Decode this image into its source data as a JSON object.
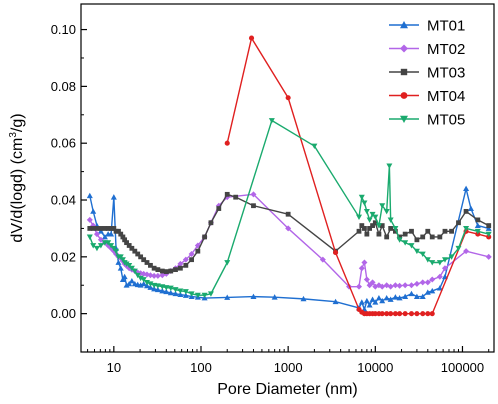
{
  "chart_data": {
    "type": "line",
    "xlabel": "Pore Diameter (nm)",
    "ylabel_parts": [
      "dV/d(logd) (cm",
      "3",
      "/g)"
    ],
    "x_scale": "log",
    "xlim": [
      4.2,
      230000
    ],
    "ylim": [
      -0.0135,
      0.109
    ],
    "x_ticks": [
      10,
      100,
      1000,
      10000,
      100000
    ],
    "x_tick_labels": [
      "10",
      "100",
      "1000",
      "10000",
      "100000"
    ],
    "y_ticks": [
      0.0,
      0.02,
      0.04,
      0.06,
      0.08,
      0.1
    ],
    "y_tick_labels": [
      "0.00",
      "0.02",
      "0.04",
      "0.06",
      "0.08",
      "0.10"
    ],
    "grid": false,
    "legend_position": "top-right",
    "series": [
      {
        "name": "MT01",
        "color": "#1f6fd1",
        "marker": "triangle-up",
        "points": [
          [
            5.3,
            0.0415
          ],
          [
            5.8,
            0.036
          ],
          [
            6.4,
            0.031
          ],
          [
            7.1,
            0.029
          ],
          [
            7.9,
            0.027
          ],
          [
            8.6,
            0.028
          ],
          [
            9.3,
            0.028
          ],
          [
            10,
            0.041
          ],
          [
            10.6,
            0.023
          ],
          [
            11.3,
            0.018
          ],
          [
            12,
            0.016
          ],
          [
            12.7,
            0.012
          ],
          [
            13.3,
            0.013
          ],
          [
            14,
            0.01
          ],
          [
            15,
            0.0105
          ],
          [
            16.1,
            0.0115
          ],
          [
            17.4,
            0.0105
          ],
          [
            18.8,
            0.0102
          ],
          [
            20.3,
            0.01
          ],
          [
            22,
            0.0105
          ],
          [
            24,
            0.0098
          ],
          [
            26.3,
            0.0092
          ],
          [
            29,
            0.0087
          ],
          [
            32,
            0.0084
          ],
          [
            36,
            0.008
          ],
          [
            40,
            0.0077
          ],
          [
            45,
            0.0073
          ],
          [
            51,
            0.007
          ],
          [
            58,
            0.0067
          ],
          [
            67,
            0.0064
          ],
          [
            78,
            0.006
          ],
          [
            92,
            0.0058
          ],
          [
            110,
            0.0055
          ],
          [
            200,
            0.0057
          ],
          [
            400,
            0.006
          ],
          [
            700,
            0.0058
          ],
          [
            1500,
            0.0052
          ],
          [
            3500,
            0.0042
          ],
          [
            6500,
            0.002
          ],
          [
            7000,
            0.004
          ],
          [
            7500,
            0.0015
          ],
          [
            8000,
            0.0045
          ],
          [
            8600,
            0.003
          ],
          [
            9300,
            0.005
          ],
          [
            10000,
            0.004
          ],
          [
            11000,
            0.0055
          ],
          [
            12000,
            0.0045
          ],
          [
            13500,
            0.0055
          ],
          [
            15000,
            0.005
          ],
          [
            17000,
            0.0058
          ],
          [
            19000,
            0.0055
          ],
          [
            22000,
            0.006
          ],
          [
            26000,
            0.007
          ],
          [
            30000,
            0.006
          ],
          [
            35000,
            0.006
          ],
          [
            40000,
            0.0075
          ],
          [
            45000,
            0.008
          ],
          [
            55000,
            0.009
          ],
          [
            63000,
            0.013
          ],
          [
            110000,
            0.044
          ],
          [
            125000,
            0.037
          ],
          [
            150000,
            0.031
          ],
          [
            200000,
            0.03
          ]
        ]
      },
      {
        "name": "MT02",
        "color": "#b266e8",
        "marker": "diamond",
        "points": [
          [
            5.3,
            0.033
          ],
          [
            5.8,
            0.031
          ],
          [
            6.4,
            0.028
          ],
          [
            7.1,
            0.026
          ],
          [
            7.9,
            0.025
          ],
          [
            8.6,
            0.024
          ],
          [
            9.3,
            0.023
          ],
          [
            10,
            0.022
          ],
          [
            10.6,
            0.021
          ],
          [
            11.3,
            0.02
          ],
          [
            12,
            0.0195
          ],
          [
            12.7,
            0.0185
          ],
          [
            13.3,
            0.0175
          ],
          [
            14,
            0.0168
          ],
          [
            15,
            0.016
          ],
          [
            16.1,
            0.0155
          ],
          [
            17.4,
            0.015
          ],
          [
            18.8,
            0.0145
          ],
          [
            20.3,
            0.0142
          ],
          [
            22,
            0.014
          ],
          [
            24,
            0.0138
          ],
          [
            26.3,
            0.0135
          ],
          [
            29,
            0.0133
          ],
          [
            32,
            0.0133
          ],
          [
            36,
            0.0135
          ],
          [
            40,
            0.014
          ],
          [
            45,
            0.015
          ],
          [
            51,
            0.016
          ],
          [
            58,
            0.0175
          ],
          [
            67,
            0.019
          ],
          [
            78,
            0.021
          ],
          [
            92,
            0.024
          ],
          [
            110,
            0.027
          ],
          [
            130,
            0.032
          ],
          [
            160,
            0.038
          ],
          [
            200,
            0.041
          ],
          [
            400,
            0.042
          ],
          [
            1000,
            0.03
          ],
          [
            2500,
            0.019
          ],
          [
            5000,
            0.0095
          ],
          [
            6500,
            0.0095
          ],
          [
            7000,
            0.016
          ],
          [
            7500,
            0.018
          ],
          [
            8000,
            0.012
          ],
          [
            8600,
            0.01
          ],
          [
            9300,
            0.011
          ],
          [
            10000,
            0.0095
          ],
          [
            11000,
            0.01
          ],
          [
            12000,
            0.0095
          ],
          [
            13500,
            0.01
          ],
          [
            15000,
            0.0095
          ],
          [
            17000,
            0.01
          ],
          [
            19000,
            0.0098
          ],
          [
            22000,
            0.01
          ],
          [
            26000,
            0.01
          ],
          [
            30000,
            0.0105
          ],
          [
            35000,
            0.011
          ],
          [
            40000,
            0.011
          ],
          [
            45000,
            0.012
          ],
          [
            55000,
            0.013
          ],
          [
            63000,
            0.016
          ],
          [
            110000,
            0.022
          ],
          [
            200000,
            0.02
          ]
        ]
      },
      {
        "name": "MT03",
        "color": "#444444",
        "marker": "square",
        "points": [
          [
            5.3,
            0.03
          ],
          [
            5.8,
            0.03
          ],
          [
            6.4,
            0.03
          ],
          [
            7.1,
            0.03
          ],
          [
            7.9,
            0.03
          ],
          [
            8.6,
            0.03
          ],
          [
            9.3,
            0.03
          ],
          [
            10,
            0.03
          ],
          [
            10.6,
            0.029
          ],
          [
            11.3,
            0.029
          ],
          [
            12,
            0.028
          ],
          [
            12.7,
            0.027
          ],
          [
            13.3,
            0.026
          ],
          [
            14,
            0.025
          ],
          [
            15,
            0.024
          ],
          [
            16.1,
            0.023
          ],
          [
            17.4,
            0.022
          ],
          [
            18.8,
            0.021
          ],
          [
            20.3,
            0.02
          ],
          [
            22,
            0.019
          ],
          [
            24,
            0.018
          ],
          [
            26.3,
            0.017
          ],
          [
            29,
            0.016
          ],
          [
            32,
            0.0155
          ],
          [
            36,
            0.015
          ],
          [
            40,
            0.0148
          ],
          [
            45,
            0.015
          ],
          [
            51,
            0.0155
          ],
          [
            58,
            0.016
          ],
          [
            67,
            0.017
          ],
          [
            78,
            0.019
          ],
          [
            92,
            0.022
          ],
          [
            110,
            0.027
          ],
          [
            130,
            0.032
          ],
          [
            160,
            0.037
          ],
          [
            200,
            0.042
          ],
          [
            250,
            0.041
          ],
          [
            400,
            0.038
          ],
          [
            1000,
            0.035
          ],
          [
            3500,
            0.022
          ],
          [
            6500,
            0.029
          ],
          [
            7000,
            0.031
          ],
          [
            7500,
            0.03
          ],
          [
            8000,
            0.028
          ],
          [
            8600,
            0.03
          ],
          [
            9300,
            0.031
          ],
          [
            10000,
            0.032
          ],
          [
            11000,
            0.028
          ],
          [
            12000,
            0.031
          ],
          [
            13500,
            0.027
          ],
          [
            15000,
            0.03
          ],
          [
            17000,
            0.029
          ],
          [
            19000,
            0.027
          ],
          [
            22000,
            0.028
          ],
          [
            26000,
            0.029
          ],
          [
            30000,
            0.026
          ],
          [
            35000,
            0.027
          ],
          [
            40000,
            0.029
          ],
          [
            45000,
            0.027
          ],
          [
            55000,
            0.027
          ],
          [
            63000,
            0.029
          ],
          [
            75000,
            0.029
          ],
          [
            90000,
            0.032
          ],
          [
            110000,
            0.036
          ],
          [
            150000,
            0.033
          ],
          [
            200000,
            0.031
          ]
        ]
      },
      {
        "name": "MT04",
        "color": "#e02020",
        "marker": "circle",
        "points": [
          [
            200,
            0.06
          ],
          [
            380,
            0.097
          ],
          [
            1000,
            0.076
          ],
          [
            3500,
            0.0215
          ],
          [
            6500,
            0.0015
          ],
          [
            7000,
            0.0005
          ],
          [
            7500,
            0.0
          ],
          [
            8000,
            0.0
          ],
          [
            8600,
            0.0
          ],
          [
            9300,
            0.0
          ],
          [
            10000,
            0.0
          ],
          [
            11000,
            0.0
          ],
          [
            12000,
            0.0
          ],
          [
            13500,
            0.0
          ],
          [
            15000,
            0.0
          ],
          [
            17000,
            0.0
          ],
          [
            19000,
            0.0
          ],
          [
            22000,
            0.0
          ],
          [
            26000,
            0.0
          ],
          [
            30000,
            0.0
          ],
          [
            35000,
            0.0
          ],
          [
            40000,
            0.0
          ],
          [
            45000,
            0.0
          ],
          [
            110000,
            0.029
          ],
          [
            150000,
            0.028
          ],
          [
            200000,
            0.027
          ]
        ]
      },
      {
        "name": "MT05",
        "color": "#1aaa6e",
        "marker": "triangle-down",
        "points": [
          [
            5.3,
            0.027
          ],
          [
            5.8,
            0.024
          ],
          [
            6.4,
            0.023
          ],
          [
            7.1,
            0.024
          ],
          [
            7.9,
            0.025
          ],
          [
            8.6,
            0.025
          ],
          [
            9.3,
            0.024
          ],
          [
            10,
            0.023
          ],
          [
            10.6,
            0.022
          ],
          [
            11.3,
            0.02
          ],
          [
            12,
            0.02
          ],
          [
            12.7,
            0.019
          ],
          [
            13.3,
            0.018
          ],
          [
            14,
            0.0175
          ],
          [
            15,
            0.017
          ],
          [
            16.1,
            0.016
          ],
          [
            17.4,
            0.015
          ],
          [
            18.8,
            0.0135
          ],
          [
            20.3,
            0.0125
          ],
          [
            22,
            0.012
          ],
          [
            24,
            0.011
          ],
          [
            26.3,
            0.0105
          ],
          [
            29,
            0.01
          ],
          [
            32,
            0.0098
          ],
          [
            36,
            0.0095
          ],
          [
            40,
            0.0092
          ],
          [
            45,
            0.009
          ],
          [
            51,
            0.0085
          ],
          [
            58,
            0.008
          ],
          [
            67,
            0.0078
          ],
          [
            78,
            0.007
          ],
          [
            92,
            0.0065
          ],
          [
            110,
            0.0065
          ],
          [
            130,
            0.007
          ],
          [
            200,
            0.018
          ],
          [
            650,
            0.068
          ],
          [
            2000,
            0.059
          ],
          [
            6500,
            0.034
          ],
          [
            7000,
            0.041
          ],
          [
            7500,
            0.039
          ],
          [
            8000,
            0.036
          ],
          [
            8600,
            0.033
          ],
          [
            9300,
            0.035
          ],
          [
            10000,
            0.034
          ],
          [
            11000,
            0.031
          ],
          [
            12000,
            0.038
          ],
          [
            13500,
            0.036
          ],
          [
            14500,
            0.052
          ],
          [
            15000,
            0.033
          ],
          [
            17000,
            0.03
          ],
          [
            19000,
            0.026
          ],
          [
            22000,
            0.025
          ],
          [
            26000,
            0.024
          ],
          [
            30000,
            0.022
          ],
          [
            35000,
            0.021
          ],
          [
            40000,
            0.019
          ],
          [
            45000,
            0.018
          ],
          [
            55000,
            0.018
          ],
          [
            63000,
            0.019
          ],
          [
            75000,
            0.02
          ],
          [
            90000,
            0.023
          ],
          [
            110000,
            0.03
          ],
          [
            150000,
            0.029
          ],
          [
            200000,
            0.028
          ]
        ]
      }
    ]
  }
}
